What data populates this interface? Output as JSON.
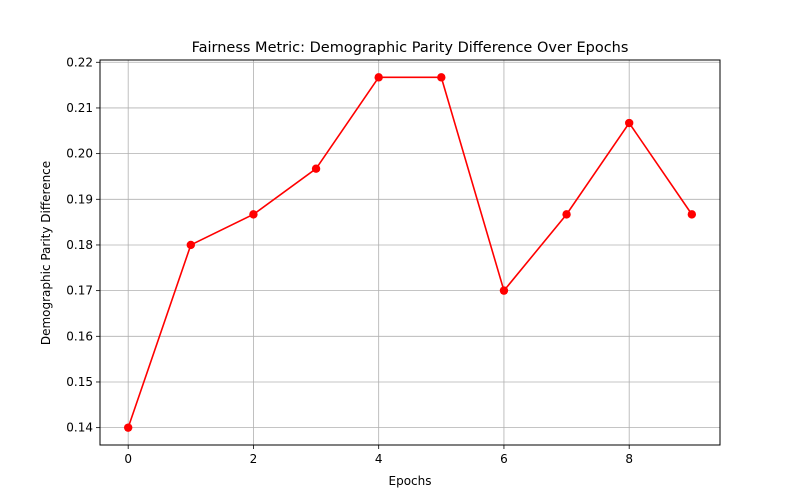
{
  "chart_data": {
    "type": "line",
    "title": "Fairness Metric: Demographic Parity Difference Over Epochs",
    "xlabel": "Epochs",
    "ylabel": "Demographic Parity Difference",
    "x": [
      0,
      1,
      2,
      3,
      4,
      5,
      6,
      7,
      8,
      9
    ],
    "series": [
      {
        "values": [
          0.14,
          0.18,
          0.1867,
          0.1967,
          0.2167,
          0.2167,
          0.17,
          0.1867,
          0.2067,
          0.1867
        ],
        "color": "#ff0000",
        "marker": "circle"
      }
    ],
    "xlim": [
      -0.45,
      9.45
    ],
    "ylim": [
      0.1362,
      0.2205
    ],
    "xticks": [
      0,
      2,
      4,
      6,
      8
    ],
    "xtick_labels": [
      "0",
      "2",
      "4",
      "6",
      "8"
    ],
    "yticks": [
      0.14,
      0.15,
      0.16,
      0.17,
      0.18,
      0.19,
      0.2,
      0.21,
      0.22
    ],
    "ytick_labels": [
      "0.14",
      "0.15",
      "0.16",
      "0.17",
      "0.18",
      "0.19",
      "0.20",
      "0.21",
      "0.22"
    ],
    "grid": true
  }
}
